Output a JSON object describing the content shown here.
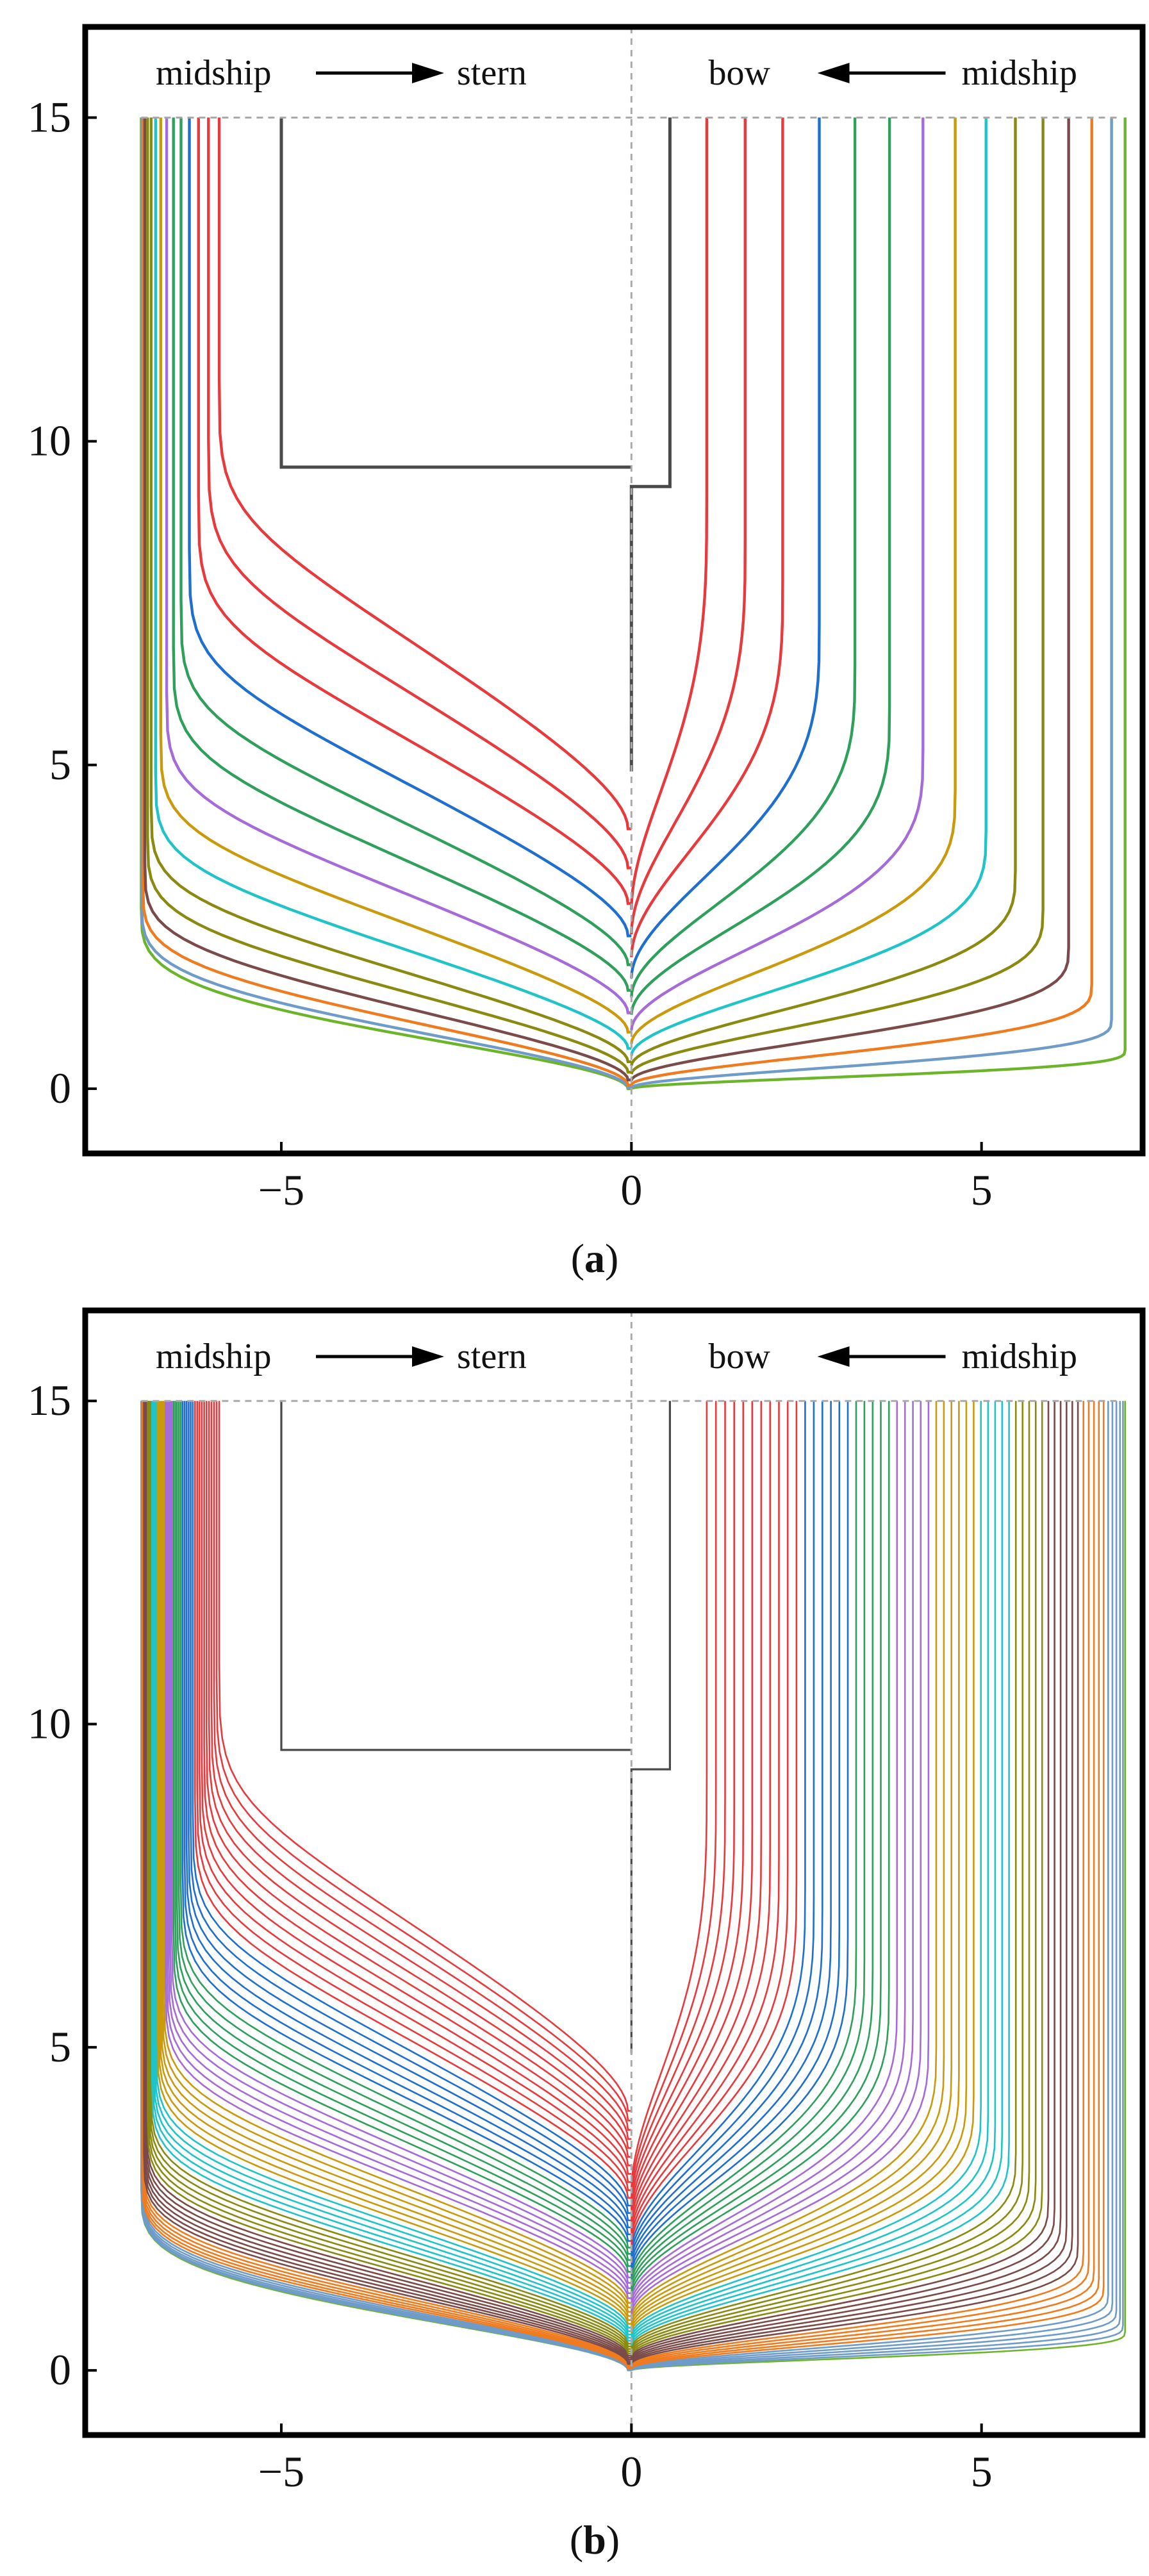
{
  "chart_data": [
    {
      "type": "line",
      "panel_label": "(a)",
      "panel_letter": "a",
      "title": "",
      "xlabel": "",
      "ylabel": "",
      "xlim": [
        -7.8,
        7.3
      ],
      "ylim": [
        -1.0,
        16.4
      ],
      "xticks": [
        -5,
        0,
        5
      ],
      "xtick_labels": [
        "−5",
        "0",
        "5"
      ],
      "yticks": [
        0,
        5,
        10,
        15
      ],
      "ytick_labels": [
        "0",
        "5",
        "10",
        "15"
      ],
      "grid": false,
      "reference_lines": [
        {
          "orientation": "vertical",
          "value": 0,
          "style": "dashed"
        },
        {
          "orientation": "horizontal",
          "value": 15,
          "style": "dashed"
        }
      ],
      "annotations": {
        "left_from": "midship",
        "left_to": "stern",
        "right_from": "midship",
        "right_to": "bow"
      },
      "section_count_per_side": 15,
      "colors": [
        "#4a4a4a",
        "#e8393c",
        "#1f6fd1",
        "#2ea05c",
        "#a56bd8",
        "#c99a0c",
        "#1fc4c8",
        "#8a8a10",
        "#7a4b48",
        "#f07b1e",
        "#6e9bc7",
        "#6cb52a"
      ]
    },
    {
      "type": "line",
      "panel_label": "(b)",
      "panel_letter": "b",
      "title": "",
      "xlabel": "",
      "ylabel": "",
      "xlim": [
        -7.8,
        7.3
      ],
      "ylim": [
        -1.0,
        16.4
      ],
      "xticks": [
        -5,
        0,
        5
      ],
      "xtick_labels": [
        "−5",
        "0",
        "5"
      ],
      "yticks": [
        0,
        5,
        10,
        15
      ],
      "ytick_labels": [
        "0",
        "5",
        "10",
        "15"
      ],
      "grid": false,
      "reference_lines": [
        {
          "orientation": "vertical",
          "value": 0,
          "style": "dashed"
        },
        {
          "orientation": "horizontal",
          "value": 15,
          "style": "dashed"
        }
      ],
      "annotations": {
        "left_from": "midship",
        "left_to": "stern",
        "right_from": "midship",
        "right_to": "bow"
      },
      "section_count_per_side": 60,
      "colors": [
        "#4a4a4a",
        "#e8393c",
        "#1f6fd1",
        "#2ea05c",
        "#a56bd8",
        "#c99a0c",
        "#1fc4c8",
        "#8a8a10",
        "#7a4b48",
        "#f07b1e",
        "#6e9bc7",
        "#6cb52a"
      ]
    }
  ]
}
